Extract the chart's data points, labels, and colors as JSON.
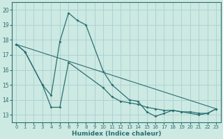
{
  "xlabel": "Humidex (Indice chaleur)",
  "xlim": [
    -0.5,
    23.5
  ],
  "ylim": [
    12.5,
    20.5
  ],
  "xticks": [
    0,
    1,
    2,
    3,
    4,
    5,
    6,
    7,
    8,
    9,
    10,
    11,
    12,
    13,
    14,
    15,
    16,
    17,
    18,
    19,
    20,
    21,
    22,
    23
  ],
  "yticks": [
    13,
    14,
    15,
    16,
    17,
    18,
    19,
    20
  ],
  "background_color": "#cce9e2",
  "grid_color": "#aaced4",
  "line_color": "#2a7070",
  "line0_x": [
    0,
    1,
    3,
    4,
    5,
    6,
    7,
    8,
    10,
    11,
    13,
    14,
    15,
    16,
    17,
    18,
    19,
    21,
    22,
    23
  ],
  "line0_y": [
    17.7,
    17.2,
    15.0,
    14.3,
    17.9,
    19.8,
    19.3,
    19.0,
    15.9,
    15.0,
    14.0,
    13.9,
    13.2,
    12.9,
    13.1,
    13.3,
    13.2,
    13.0,
    13.1,
    13.4
  ],
  "line1_x": [
    0,
    1,
    3,
    4,
    5,
    6,
    10,
    11,
    12,
    13,
    14,
    15,
    16,
    17,
    18,
    19,
    20,
    21,
    22,
    23
  ],
  "line1_y": [
    17.7,
    17.2,
    15.0,
    13.5,
    13.5,
    16.5,
    14.8,
    14.2,
    13.9,
    13.8,
    13.7,
    13.5,
    13.4,
    13.3,
    13.3,
    13.2,
    13.2,
    13.1,
    13.1,
    13.4
  ],
  "line2_x": [
    0,
    23
  ],
  "line2_y": [
    17.7,
    13.4
  ]
}
